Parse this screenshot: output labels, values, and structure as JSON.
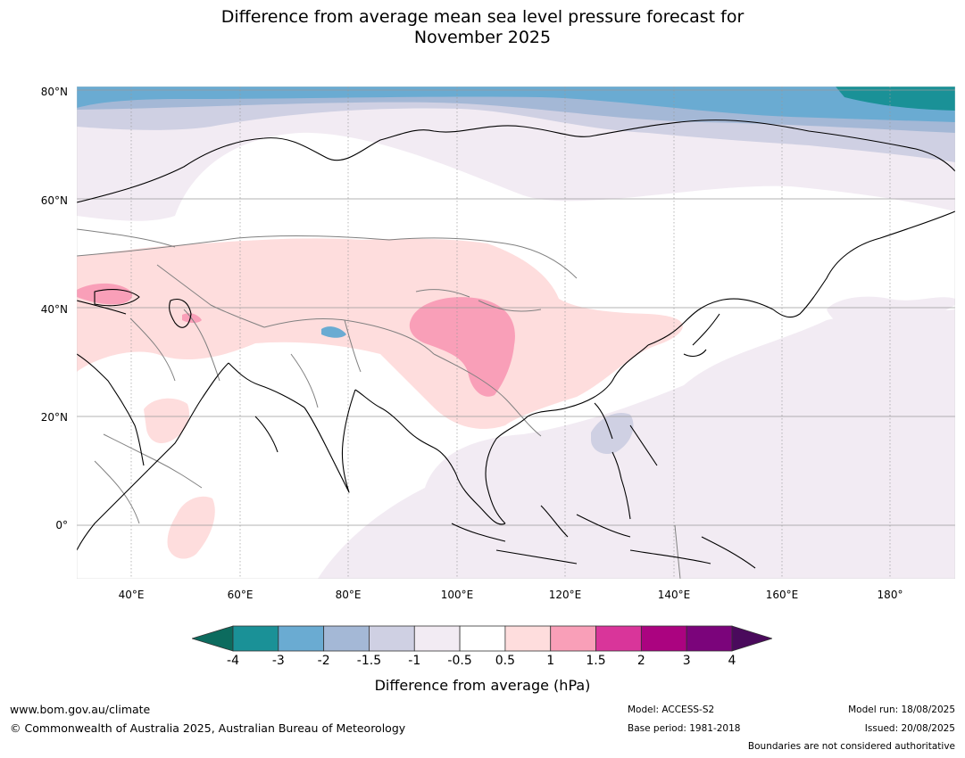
{
  "title": {
    "line1": "Difference from average mean sea level pressure forecast for",
    "line2": "November 2025"
  },
  "map": {
    "lat_labels": [
      "80°N",
      "60°N",
      "40°N",
      "20°N",
      "0°"
    ],
    "lon_labels": [
      "40°E",
      "60°E",
      "80°E",
      "100°E",
      "120°E",
      "140°E",
      "160°E",
      "180°"
    ],
    "colors": {
      "land_boundary": "#000000",
      "country_boundary": "#808080",
      "grid": "#9a9a9a"
    }
  },
  "legend": {
    "title": "Difference from average (hPa)",
    "ticks": [
      "-4",
      "-3",
      "-2",
      "-1.5",
      "-1",
      "-0.5",
      "0.5",
      "1",
      "1.5",
      "2",
      "3",
      "4"
    ],
    "under_color": "#0c6b5e",
    "over_color": "#4a0a5c",
    "colors": [
      "#1a9197",
      "#6aabd2",
      "#a4b8d6",
      "#cfd0e3",
      "#f2ebf3",
      "#ffffff",
      "#fedddd",
      "#f99fb8",
      "#d9359a",
      "#ab0380",
      "#7b047b"
    ]
  },
  "footer": {
    "url": "www.bom.gov.au/climate",
    "copyright": "© Commonwealth of Australia 2025, Australian Bureau of Meteorology",
    "model": "Model: ACCESS-S2",
    "base_period": "Base period: 1981-2018",
    "model_run": "Model run: 18/08/2025",
    "issued": "Issued: 20/08/2025",
    "disclaimer": "Boundaries are not considered authoritative"
  }
}
